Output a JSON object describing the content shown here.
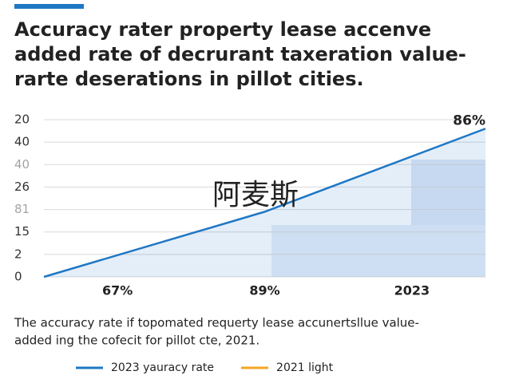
{
  "chart_data": {
    "type": "line",
    "title_lines": [
      "Accuracy rater property lease accenve",
      "added rate of decrurant taxeration value-",
      "rarte deserations in pillot cities."
    ],
    "x": [
      0,
      1.5,
      3
    ],
    "xlim": [
      0,
      3
    ],
    "xticks": [
      {
        "value": 0.5,
        "label": "67%"
      },
      {
        "value": 1.5,
        "label": "89%"
      },
      {
        "value": 2.5,
        "label": "2023"
      }
    ],
    "series": [
      {
        "name": "2023 yauracy rate",
        "color": "#1f77c4",
        "values": [
          0,
          2.9,
          6.6
        ]
      }
    ],
    "legend": [
      {
        "name": "2023 yauracy rate",
        "color": "#1f77c4"
      },
      {
        "name": "2021 light",
        "color": "#f5a623"
      }
    ],
    "ylim": [
      0,
      7
    ],
    "yticks": [
      {
        "value": 7,
        "label": "20"
      },
      {
        "value": 6,
        "label": "40"
      },
      {
        "value": 5,
        "label": "40"
      },
      {
        "value": 4,
        "label": "26"
      },
      {
        "value": 3,
        "label": "81"
      },
      {
        "value": 2,
        "label": "15"
      },
      {
        "value": 1,
        "label": "2"
      },
      {
        "value": 0,
        "label": "0"
      }
    ],
    "grid": true,
    "annotation": "86%",
    "watermark": "阿麦斯",
    "caption_lines": [
      "The accuracy rate if topomated requerty lease accunertsllue value-",
      "added ing the cofecit for pillot cte, 2021."
    ]
  }
}
